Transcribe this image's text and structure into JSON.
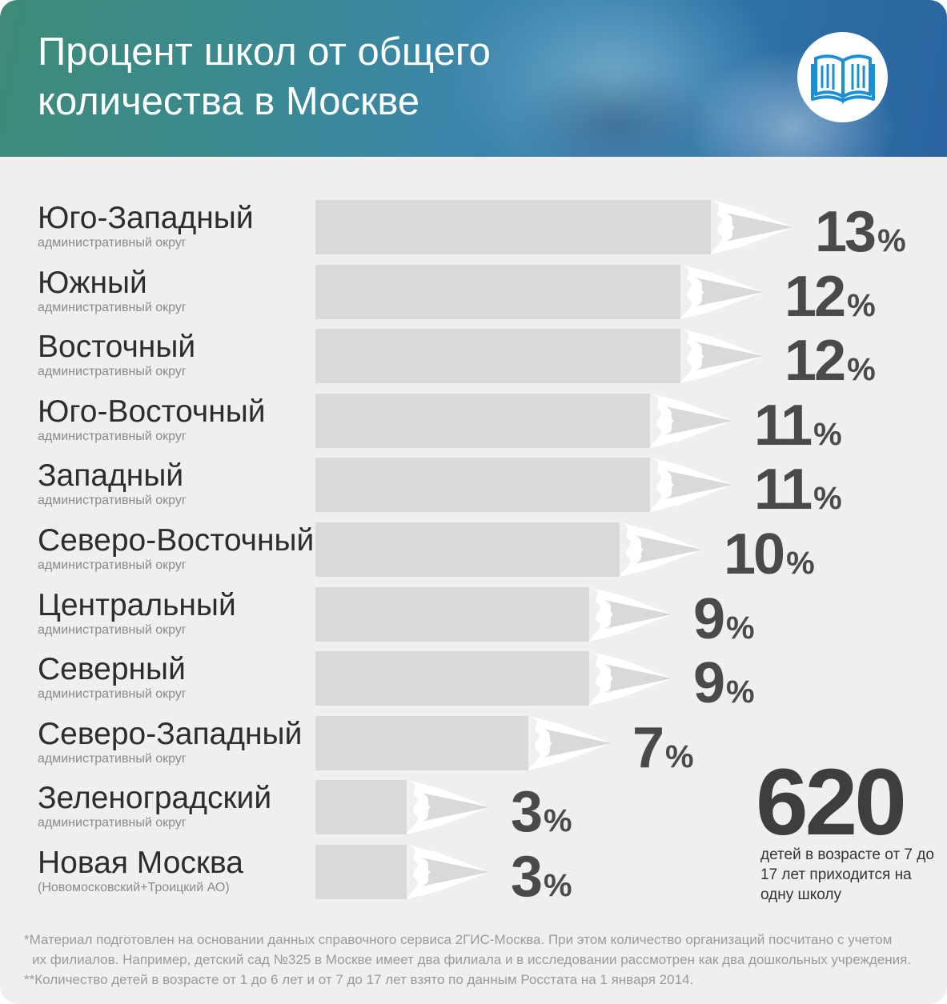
{
  "header": {
    "title_line1": "Процент школ от общего",
    "title_line2": "количества в Москве",
    "icon": "open-book-icon",
    "accent_color": "#1a8fd6"
  },
  "chart_data": {
    "type": "bar",
    "orientation": "horizontal",
    "categories": [
      "Юго-Западный",
      "Южный",
      "Восточный",
      "Юго-Восточный",
      "Западный",
      "Северо-Восточный",
      "Центральный",
      "Северный",
      "Северо-Западный",
      "Зеленоградский",
      "Новая Москва"
    ],
    "subtitles": [
      "административный округ",
      "административный округ",
      "административный округ",
      "административный округ",
      "административный округ",
      "административный округ",
      "административный округ",
      "административный округ",
      "административный округ",
      "административный округ",
      "(Новомосковский+Троицкий АО)"
    ],
    "values": [
      13,
      12,
      12,
      11,
      11,
      10,
      9,
      9,
      7,
      3,
      3
    ],
    "unit": "%",
    "bar_color": "#d9d9d9",
    "value_color": "#4a4a4a"
  },
  "callout": {
    "number": "620",
    "text": "детей в возрасте от 7 до 17 лет приходится на одну школу"
  },
  "footnotes": {
    "note1_line1": "*Материал подготовлен на основании данных справочного сервиса 2ГИС-Москва. При этом количество организаций посчитано с учетом",
    "note1_line2": "их филиалов. Например, детский сад №325 в Москве имеет два филиала и в исследовании рассмотрен как два дошкольных учреждения.",
    "note2": "**Количество детей в возрасте от 1 до 6 лет и от 7 до 17 лет взято по данным Росстата на 1 января 2014."
  }
}
